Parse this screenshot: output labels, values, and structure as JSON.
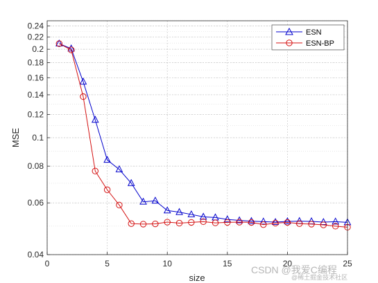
{
  "chart_data": {
    "type": "line",
    "title": "",
    "xlabel": "size",
    "ylabel": "MSE",
    "xlim": [
      0,
      25
    ],
    "ylim": [
      0.04,
      0.25
    ],
    "yscale": "log",
    "grid": true,
    "legend_position": "top-right",
    "x_ticks": [
      0,
      5,
      10,
      15,
      20,
      25
    ],
    "y_ticks": [
      0.04,
      0.06,
      0.08,
      0.1,
      0.12,
      0.14,
      0.16,
      0.18,
      0.2,
      0.22,
      0.24
    ],
    "y_tick_labels": [
      "0.04",
      "0.06",
      "0.08",
      "0.1",
      "0.12",
      "0.14",
      "0.16",
      "0.18",
      "0.2",
      "0.22",
      "0.24"
    ],
    "x": [
      1,
      2,
      3,
      4,
      5,
      6,
      7,
      8,
      9,
      10,
      11,
      12,
      13,
      14,
      15,
      16,
      17,
      18,
      19,
      20,
      21,
      22,
      23,
      24,
      25
    ],
    "series": [
      {
        "name": "ESN",
        "color": "#0000cc",
        "marker": "triangle",
        "values": [
          0.209,
          0.201,
          0.155,
          0.115,
          0.084,
          0.078,
          0.07,
          0.0605,
          0.061,
          0.0565,
          0.0558,
          0.0548,
          0.0538,
          0.0535,
          0.0527,
          0.0523,
          0.052,
          0.0518,
          0.0516,
          0.0519,
          0.052,
          0.0519,
          0.0516,
          0.0518,
          0.0515
        ]
      },
      {
        "name": "ESN-BP",
        "color": "#d41111",
        "marker": "circle",
        "values": [
          0.209,
          0.199,
          0.138,
          0.077,
          0.0665,
          0.059,
          0.051,
          0.0508,
          0.0509,
          0.0516,
          0.0512,
          0.0515,
          0.0518,
          0.0513,
          0.0515,
          0.0516,
          0.0515,
          0.0506,
          0.0512,
          0.0515,
          0.051,
          0.0508,
          0.0505,
          0.05,
          0.0496
        ]
      }
    ]
  },
  "watermark": {
    "main": "CSDN @我爱C编程",
    "sub": "@稀土掘金技术社区"
  }
}
